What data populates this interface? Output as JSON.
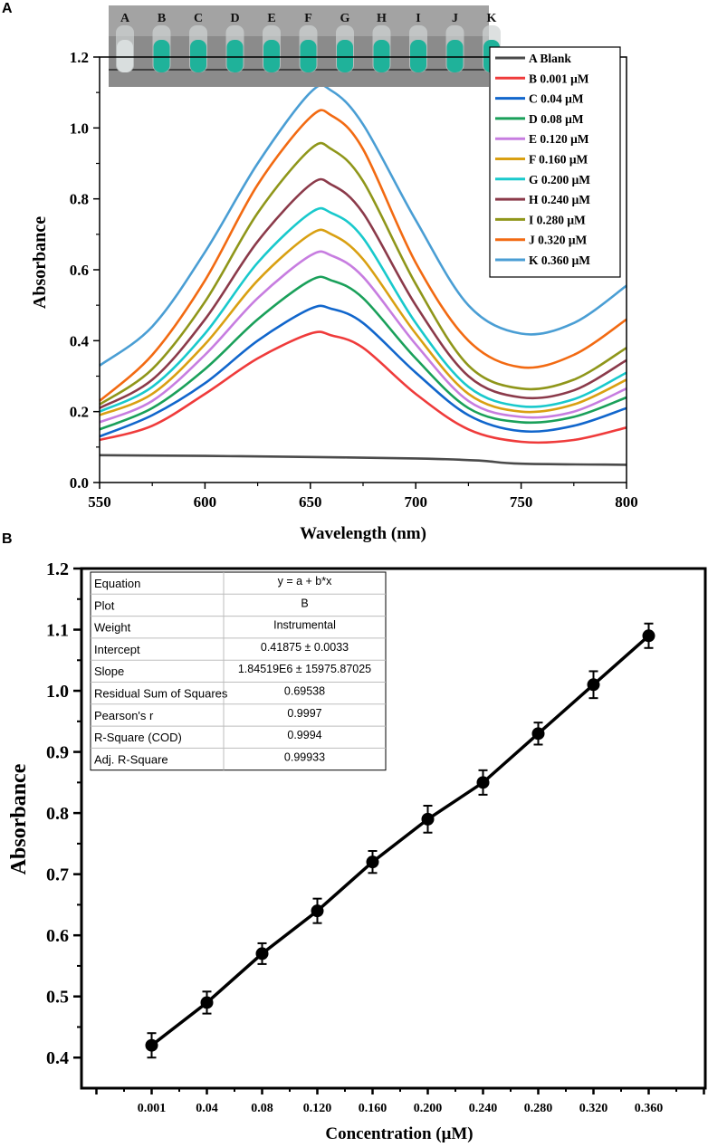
{
  "panel_labels": [
    "A",
    "B"
  ],
  "colors": {
    "axis": "#000000",
    "blank": "#4a4a4a",
    "vial_fill": "#1fb29a",
    "vial_bg": "#8b8b8b",
    "series": [
      "#4a4a4a",
      "#ef3b3b",
      "#1166cc",
      "#1aa05a",
      "#c77de0",
      "#d9a012",
      "#19c9cc",
      "#8b3a4a",
      "#8f961a",
      "#f26a12",
      "#4a9ed4"
    ]
  },
  "chart_data": [
    {
      "id": "A",
      "type": "line",
      "title": "",
      "xlabel": "Wavelength (nm)",
      "ylabel": "Absorbance",
      "xlim": [
        550,
        800
      ],
      "ylim": [
        0.0,
        1.2
      ],
      "xticks": [
        550,
        600,
        650,
        700,
        750,
        800
      ],
      "yticks": [
        0.0,
        0.2,
        0.4,
        0.6,
        0.8,
        1.0,
        1.2
      ],
      "ytick_labels": [
        "0.0",
        "0.2",
        "0.4",
        "0.6",
        "0.8",
        "1.0",
        "1.2"
      ],
      "legend_position": "top-right",
      "inset_vial_labels": [
        "A",
        "B",
        "C",
        "D",
        "E",
        "F",
        "G",
        "H",
        "I",
        "J",
        "K"
      ],
      "series": [
        {
          "name": "A Blank",
          "x": [
            550,
            600,
            650,
            700,
            730,
            750,
            800
          ],
          "values": [
            0.077,
            0.075,
            0.072,
            0.068,
            0.062,
            0.053,
            0.05
          ]
        },
        {
          "name": "B 0.001 μM",
          "x": [
            550,
            575,
            600,
            625,
            650,
            660,
            675,
            700,
            725,
            750,
            775,
            800
          ],
          "values": [
            0.12,
            0.16,
            0.25,
            0.35,
            0.42,
            0.415,
            0.38,
            0.25,
            0.15,
            0.115,
            0.12,
            0.155
          ]
        },
        {
          "name": "C 0.04   μM",
          "x": [
            550,
            575,
            600,
            625,
            650,
            660,
            675,
            700,
            725,
            750,
            775,
            800
          ],
          "values": [
            0.13,
            0.19,
            0.28,
            0.4,
            0.49,
            0.49,
            0.45,
            0.31,
            0.19,
            0.145,
            0.16,
            0.21
          ]
        },
        {
          "name": "D 0.08   μM",
          "x": [
            550,
            575,
            600,
            625,
            650,
            660,
            675,
            700,
            725,
            750,
            775,
            800
          ],
          "values": [
            0.15,
            0.21,
            0.32,
            0.46,
            0.57,
            0.57,
            0.52,
            0.35,
            0.21,
            0.17,
            0.185,
            0.24
          ]
        },
        {
          "name": "E 0.120 μM",
          "x": [
            550,
            575,
            600,
            625,
            650,
            660,
            675,
            700,
            725,
            750,
            775,
            800
          ],
          "values": [
            0.17,
            0.23,
            0.36,
            0.52,
            0.64,
            0.64,
            0.58,
            0.39,
            0.23,
            0.185,
            0.2,
            0.265
          ]
        },
        {
          "name": "F 0.160 μM",
          "x": [
            550,
            575,
            600,
            625,
            650,
            660,
            675,
            700,
            725,
            750,
            775,
            800
          ],
          "values": [
            0.19,
            0.25,
            0.39,
            0.57,
            0.7,
            0.7,
            0.63,
            0.42,
            0.25,
            0.2,
            0.22,
            0.29
          ]
        },
        {
          "name": "G 0.200 μM",
          "x": [
            550,
            575,
            600,
            625,
            650,
            660,
            675,
            700,
            725,
            750,
            775,
            800
          ],
          "values": [
            0.2,
            0.27,
            0.42,
            0.62,
            0.76,
            0.76,
            0.69,
            0.45,
            0.27,
            0.215,
            0.235,
            0.31
          ]
        },
        {
          "name": "H 0.240 μM",
          "x": [
            550,
            575,
            600,
            625,
            650,
            660,
            675,
            700,
            725,
            750,
            775,
            800
          ],
          "values": [
            0.21,
            0.29,
            0.46,
            0.68,
            0.84,
            0.84,
            0.76,
            0.5,
            0.3,
            0.24,
            0.26,
            0.345
          ]
        },
        {
          "name": "I 0.280  μM",
          "x": [
            550,
            575,
            600,
            625,
            650,
            660,
            675,
            700,
            725,
            750,
            775,
            800
          ],
          "values": [
            0.22,
            0.32,
            0.51,
            0.76,
            0.94,
            0.94,
            0.85,
            0.56,
            0.33,
            0.265,
            0.29,
            0.38
          ]
        },
        {
          "name": "J 0.320  μM",
          "x": [
            550,
            575,
            600,
            625,
            650,
            660,
            675,
            700,
            725,
            750,
            775,
            800
          ],
          "values": [
            0.23,
            0.36,
            0.57,
            0.84,
            1.03,
            1.035,
            0.94,
            0.62,
            0.4,
            0.325,
            0.36,
            0.46
          ]
        },
        {
          "name": "K 0.360 μM",
          "x": [
            550,
            575,
            600,
            625,
            650,
            660,
            675,
            700,
            725,
            750,
            775,
            800
          ],
          "values": [
            0.33,
            0.44,
            0.65,
            0.9,
            1.1,
            1.105,
            1.01,
            0.74,
            0.5,
            0.42,
            0.45,
            0.555
          ]
        }
      ]
    },
    {
      "id": "B",
      "type": "line",
      "title": "",
      "xlabel": "Concentration (μM)",
      "ylabel": "Absorbance",
      "categories": [
        "0.001",
        "0.04",
        "0.08",
        "0.120",
        "0.160",
        "0.200",
        "0.240",
        "0.280",
        "0.320",
        "0.360"
      ],
      "ylim": [
        0.35,
        1.2
      ],
      "yticks": [
        0.4,
        0.5,
        0.6,
        0.7,
        0.8,
        0.9,
        1.0,
        1.1,
        1.2
      ],
      "ytick_labels": [
        "0.4",
        "0.5",
        "0.6",
        "0.7",
        "0.8",
        "0.9",
        "1.0",
        "1.1",
        "1.2"
      ],
      "values": [
        0.42,
        0.49,
        0.57,
        0.64,
        0.72,
        0.79,
        0.85,
        0.93,
        1.01,
        1.09
      ],
      "errors": [
        0.02,
        0.018,
        0.017,
        0.02,
        0.018,
        0.022,
        0.02,
        0.018,
        0.022,
        0.02
      ],
      "fit_table": [
        [
          "Equation",
          "y = a + b*x"
        ],
        [
          "Plot",
          "B"
        ],
        [
          "Weight",
          "Instrumental"
        ],
        [
          "Intercept",
          "0.41875 ± 0.0033"
        ],
        [
          "Slope",
          "1.84519E6 ± 15975.87025"
        ],
        [
          "Residual Sum of Squares",
          "0.69538"
        ],
        [
          "Pearson's r",
          "0.9997"
        ],
        [
          "R-Square (COD)",
          "0.9994"
        ],
        [
          "Adj. R-Square",
          "0.99933"
        ]
      ]
    }
  ]
}
